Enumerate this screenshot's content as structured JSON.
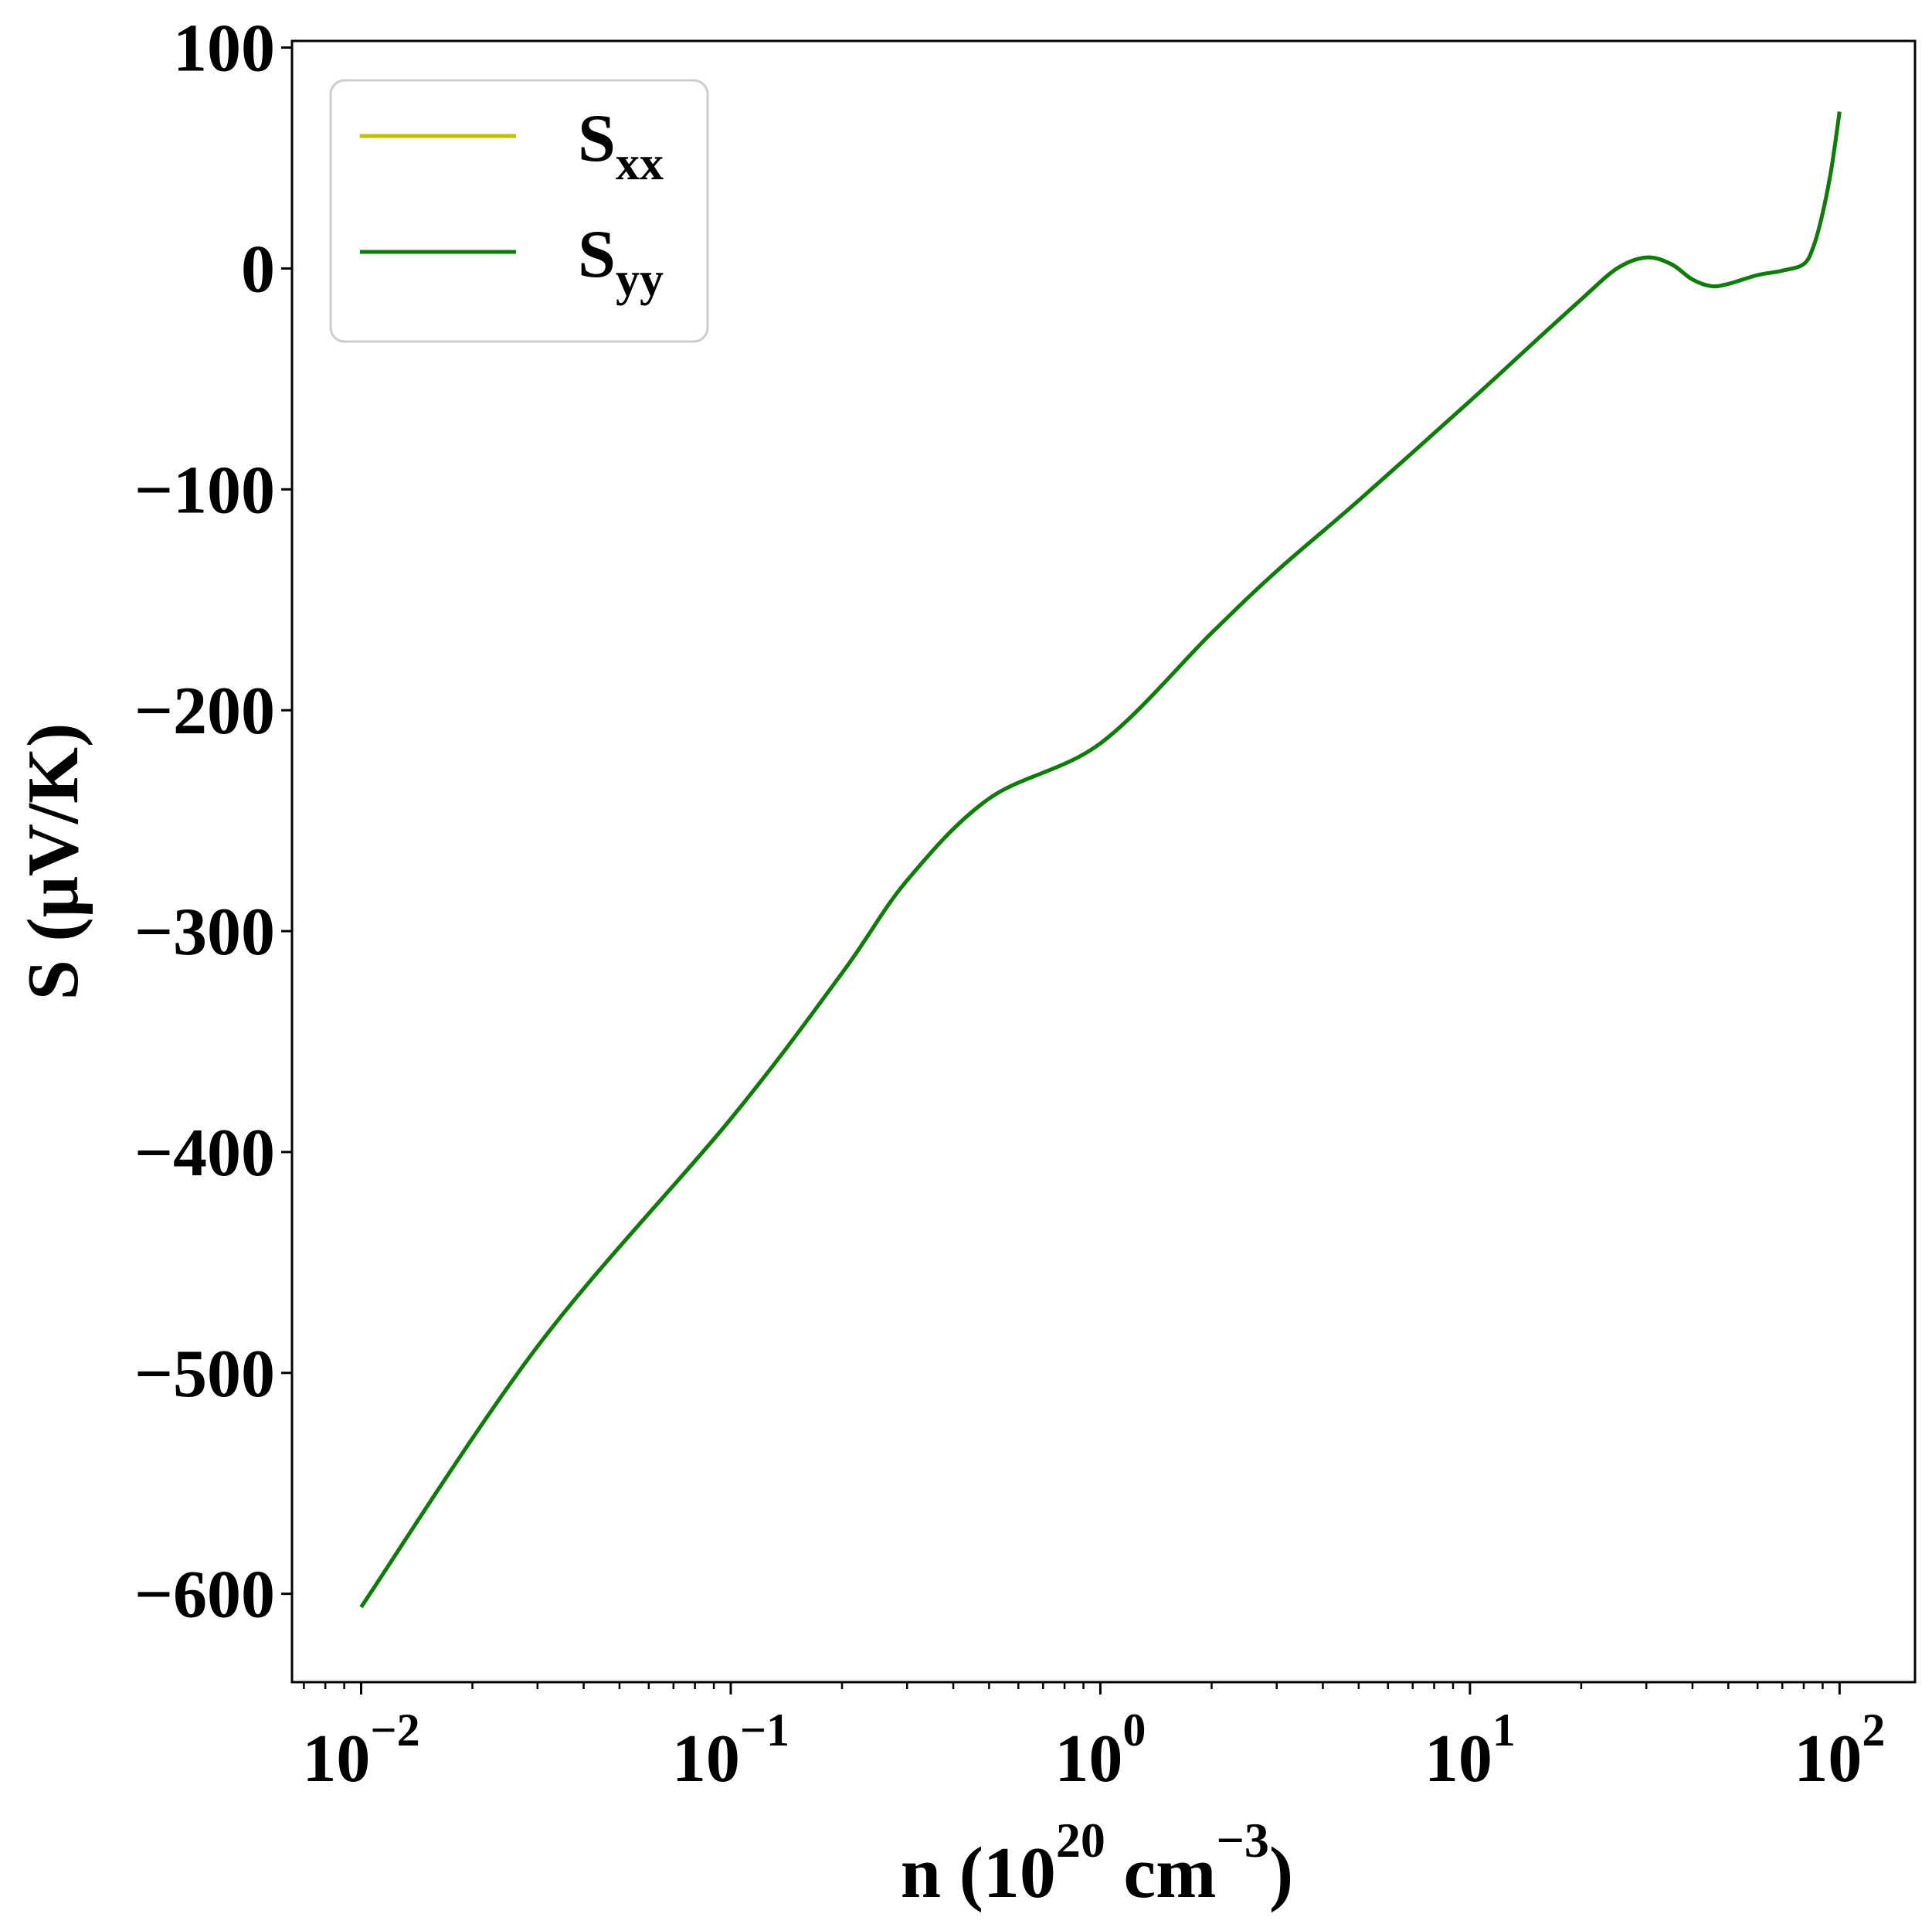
{
  "chart_data": {
    "type": "line",
    "x_scale": "log",
    "xlim": [
      0.0065,
      160
    ],
    "ylim": [
      -640,
      103
    ],
    "grid": false,
    "legend_position": "top-left",
    "xlabel": {
      "prefix": "n (10",
      "sup1": "20",
      "mid": " cm",
      "sup2": "−3",
      "suffix": ")"
    },
    "ylabel": "S (μV/K)",
    "y_ticks": [
      100,
      0,
      -100,
      -200,
      -300,
      -400,
      -500,
      -600
    ],
    "y_tick_labels": [
      "100",
      "0",
      "−100",
      "−200",
      "−300",
      "−400",
      "−500",
      "−600"
    ],
    "x_ticks": [
      {
        "value": 0.01,
        "base": "10",
        "exp": "−2"
      },
      {
        "value": 0.1,
        "base": "10",
        "exp": "−1"
      },
      {
        "value": 1,
        "base": "10",
        "exp": "0"
      },
      {
        "value": 10,
        "base": "10",
        "exp": "1"
      },
      {
        "value": 100,
        "base": "10",
        "exp": "2"
      }
    ],
    "series": [
      {
        "name": "S_xx",
        "label_main": "S",
        "label_sub": "xx",
        "color": "#bfbf00",
        "x": [
          0.01,
          0.03,
          0.1,
          0.2,
          0.3,
          0.5,
          1,
          2,
          3,
          5,
          10,
          15,
          20,
          25,
          30,
          35,
          40,
          45,
          50,
          60,
          70,
          80,
          85,
          90,
          95,
          100
        ],
        "y": [
          -606,
          -488,
          -385,
          -319,
          -277,
          -240,
          -215,
          -165,
          -137,
          -105,
          -60,
          -33,
          -14,
          0,
          5,
          2,
          -5,
          -8,
          -7,
          -3,
          -1,
          2,
          10,
          25,
          45,
          71
        ]
      },
      {
        "name": "S_yy",
        "label_main": "S",
        "label_sub": "yy",
        "color": "#0a7d0a",
        "x": [
          0.01,
          0.03,
          0.1,
          0.2,
          0.3,
          0.5,
          1,
          2,
          3,
          5,
          10,
          15,
          20,
          25,
          30,
          35,
          40,
          45,
          50,
          60,
          70,
          80,
          85,
          90,
          95,
          100
        ],
        "y": [
          -606,
          -488,
          -385,
          -319,
          -277,
          -240,
          -215,
          -165,
          -137,
          -105,
          -60,
          -33,
          -14,
          0,
          5,
          2,
          -5,
          -8,
          -7,
          -3,
          -1,
          2,
          10,
          25,
          45,
          71
        ]
      }
    ]
  }
}
